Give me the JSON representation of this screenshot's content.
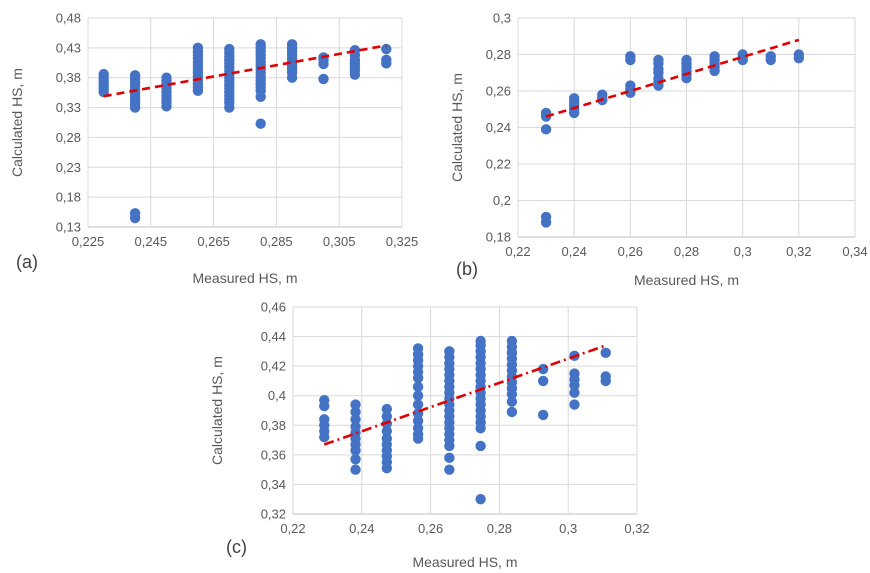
{
  "chart_data": [
    {
      "id": "a",
      "type": "scatter",
      "panel_label": "(a)",
      "xlabel": "Measured HS, m",
      "ylabel": "Calculated HS, m",
      "xlim": [
        0.225,
        0.325
      ],
      "ylim": [
        0.13,
        0.48
      ],
      "xticks": [
        "0,225",
        "0,245",
        "0,265",
        "0,285",
        "0,305",
        "0,325"
      ],
      "yticks": [
        "0,13",
        "0,18",
        "0,23",
        "0,28",
        "0,33",
        "0,38",
        "0,43",
        "0,48"
      ],
      "grid": true,
      "trendline": {
        "x": [
          0.23,
          0.32
        ],
        "y": [
          0.349,
          0.434
        ],
        "style": "dashed"
      },
      "points": [
        [
          0.23,
          0.386
        ],
        [
          0.23,
          0.381
        ],
        [
          0.23,
          0.376
        ],
        [
          0.23,
          0.371
        ],
        [
          0.23,
          0.366
        ],
        [
          0.23,
          0.361
        ],
        [
          0.23,
          0.356
        ],
        [
          0.24,
          0.384
        ],
        [
          0.24,
          0.378
        ],
        [
          0.24,
          0.372
        ],
        [
          0.24,
          0.366
        ],
        [
          0.24,
          0.36
        ],
        [
          0.24,
          0.354
        ],
        [
          0.24,
          0.348
        ],
        [
          0.24,
          0.342
        ],
        [
          0.24,
          0.336
        ],
        [
          0.24,
          0.33
        ],
        [
          0.24,
          0.153
        ],
        [
          0.24,
          0.145
        ],
        [
          0.25,
          0.38
        ],
        [
          0.25,
          0.374
        ],
        [
          0.25,
          0.368
        ],
        [
          0.25,
          0.362
        ],
        [
          0.25,
          0.356
        ],
        [
          0.25,
          0.35
        ],
        [
          0.25,
          0.344
        ],
        [
          0.25,
          0.338
        ],
        [
          0.25,
          0.332
        ],
        [
          0.26,
          0.43
        ],
        [
          0.26,
          0.424
        ],
        [
          0.26,
          0.418
        ],
        [
          0.26,
          0.412
        ],
        [
          0.26,
          0.406
        ],
        [
          0.26,
          0.4
        ],
        [
          0.26,
          0.394
        ],
        [
          0.26,
          0.388
        ],
        [
          0.26,
          0.382
        ],
        [
          0.26,
          0.376
        ],
        [
          0.26,
          0.37
        ],
        [
          0.26,
          0.364
        ],
        [
          0.26,
          0.358
        ],
        [
          0.27,
          0.428
        ],
        [
          0.27,
          0.422
        ],
        [
          0.27,
          0.416
        ],
        [
          0.27,
          0.41
        ],
        [
          0.27,
          0.404
        ],
        [
          0.27,
          0.398
        ],
        [
          0.27,
          0.392
        ],
        [
          0.27,
          0.386
        ],
        [
          0.27,
          0.38
        ],
        [
          0.27,
          0.374
        ],
        [
          0.27,
          0.368
        ],
        [
          0.27,
          0.362
        ],
        [
          0.27,
          0.356
        ],
        [
          0.27,
          0.35
        ],
        [
          0.27,
          0.344
        ],
        [
          0.27,
          0.338
        ],
        [
          0.27,
          0.33
        ],
        [
          0.28,
          0.436
        ],
        [
          0.28,
          0.43
        ],
        [
          0.28,
          0.424
        ],
        [
          0.28,
          0.418
        ],
        [
          0.28,
          0.412
        ],
        [
          0.28,
          0.406
        ],
        [
          0.28,
          0.4
        ],
        [
          0.28,
          0.394
        ],
        [
          0.28,
          0.388
        ],
        [
          0.28,
          0.382
        ],
        [
          0.28,
          0.376
        ],
        [
          0.28,
          0.37
        ],
        [
          0.28,
          0.364
        ],
        [
          0.28,
          0.358
        ],
        [
          0.28,
          0.348
        ],
        [
          0.28,
          0.303
        ],
        [
          0.29,
          0.436
        ],
        [
          0.29,
          0.43
        ],
        [
          0.29,
          0.424
        ],
        [
          0.29,
          0.418
        ],
        [
          0.29,
          0.412
        ],
        [
          0.29,
          0.406
        ],
        [
          0.29,
          0.4
        ],
        [
          0.29,
          0.394
        ],
        [
          0.29,
          0.388
        ],
        [
          0.29,
          0.38
        ],
        [
          0.3,
          0.414
        ],
        [
          0.3,
          0.41
        ],
        [
          0.3,
          0.403
        ],
        [
          0.3,
          0.378
        ],
        [
          0.31,
          0.426
        ],
        [
          0.31,
          0.418
        ],
        [
          0.31,
          0.41
        ],
        [
          0.31,
          0.404
        ],
        [
          0.31,
          0.398
        ],
        [
          0.31,
          0.392
        ],
        [
          0.31,
          0.385
        ],
        [
          0.32,
          0.428
        ],
        [
          0.32,
          0.41
        ],
        [
          0.32,
          0.404
        ]
      ]
    },
    {
      "id": "b",
      "type": "scatter",
      "panel_label": "(b)",
      "xlabel": "Measured HS, m",
      "ylabel": "Calculated HS, m",
      "xlim": [
        0.22,
        0.34
      ],
      "ylim": [
        0.18,
        0.3
      ],
      "xticks": [
        "0,22",
        "0,24",
        "0,26",
        "0,28",
        "0,3",
        "0,32",
        "0,34"
      ],
      "yticks": [
        "0,18",
        "0,2",
        "0,22",
        "0,24",
        "0,26",
        "0,28",
        "0,3"
      ],
      "grid": true,
      "trendline": {
        "x": [
          0.23,
          0.32
        ],
        "y": [
          0.246,
          0.288
        ],
        "style": "dashed"
      },
      "points": [
        [
          0.23,
          0.248
        ],
        [
          0.23,
          0.246
        ],
        [
          0.23,
          0.239
        ],
        [
          0.23,
          0.191
        ],
        [
          0.23,
          0.188
        ],
        [
          0.24,
          0.256
        ],
        [
          0.24,
          0.254
        ],
        [
          0.24,
          0.252
        ],
        [
          0.24,
          0.25
        ],
        [
          0.24,
          0.248
        ],
        [
          0.25,
          0.258
        ],
        [
          0.25,
          0.256
        ],
        [
          0.25,
          0.255
        ],
        [
          0.26,
          0.279
        ],
        [
          0.26,
          0.277
        ],
        [
          0.26,
          0.263
        ],
        [
          0.26,
          0.261
        ],
        [
          0.26,
          0.259
        ],
        [
          0.27,
          0.277
        ],
        [
          0.27,
          0.275
        ],
        [
          0.27,
          0.272
        ],
        [
          0.27,
          0.27
        ],
        [
          0.27,
          0.267
        ],
        [
          0.27,
          0.265
        ],
        [
          0.27,
          0.263
        ],
        [
          0.28,
          0.277
        ],
        [
          0.28,
          0.275
        ],
        [
          0.28,
          0.273
        ],
        [
          0.28,
          0.271
        ],
        [
          0.28,
          0.269
        ],
        [
          0.28,
          0.267
        ],
        [
          0.29,
          0.279
        ],
        [
          0.29,
          0.277
        ],
        [
          0.29,
          0.275
        ],
        [
          0.29,
          0.273
        ],
        [
          0.29,
          0.271
        ],
        [
          0.3,
          0.28
        ],
        [
          0.3,
          0.278
        ],
        [
          0.3,
          0.277
        ],
        [
          0.31,
          0.279
        ],
        [
          0.31,
          0.277
        ],
        [
          0.32,
          0.28
        ],
        [
          0.32,
          0.278
        ]
      ]
    },
    {
      "id": "c",
      "type": "scatter",
      "panel_label": "(c)",
      "xlabel": "Measured HS, m",
      "ylabel": "Calculated HS, m",
      "xlim": [
        0.22,
        0.33
      ],
      "ylim": [
        0.32,
        0.46
      ],
      "xticks": [
        "0,22",
        "0,24",
        "0,26",
        "0,28",
        "0,3",
        "0,32"
      ],
      "yticks": [
        "0,32",
        "0,34",
        "0,36",
        "0,38",
        "0,4",
        "0,42",
        "0,44",
        "0,46"
      ],
      "grid": true,
      "trendline": {
        "x": [
          0.23,
          0.32
        ],
        "y": [
          0.367,
          0.434
        ],
        "style": "dash-dot"
      },
      "points": [
        [
          0.23,
          0.397
        ],
        [
          0.23,
          0.393
        ],
        [
          0.23,
          0.384
        ],
        [
          0.23,
          0.38
        ],
        [
          0.23,
          0.376
        ],
        [
          0.23,
          0.372
        ],
        [
          0.24,
          0.394
        ],
        [
          0.24,
          0.389
        ],
        [
          0.24,
          0.384
        ],
        [
          0.24,
          0.379
        ],
        [
          0.24,
          0.375
        ],
        [
          0.24,
          0.371
        ],
        [
          0.24,
          0.367
        ],
        [
          0.24,
          0.363
        ],
        [
          0.24,
          0.357
        ],
        [
          0.24,
          0.35
        ],
        [
          0.25,
          0.391
        ],
        [
          0.25,
          0.386
        ],
        [
          0.25,
          0.381
        ],
        [
          0.25,
          0.376
        ],
        [
          0.25,
          0.371
        ],
        [
          0.25,
          0.367
        ],
        [
          0.25,
          0.363
        ],
        [
          0.25,
          0.359
        ],
        [
          0.25,
          0.355
        ],
        [
          0.25,
          0.351
        ],
        [
          0.26,
          0.432
        ],
        [
          0.26,
          0.428
        ],
        [
          0.26,
          0.424
        ],
        [
          0.26,
          0.42
        ],
        [
          0.26,
          0.416
        ],
        [
          0.26,
          0.412
        ],
        [
          0.26,
          0.406
        ],
        [
          0.26,
          0.4
        ],
        [
          0.26,
          0.394
        ],
        [
          0.26,
          0.388
        ],
        [
          0.26,
          0.383
        ],
        [
          0.26,
          0.378
        ],
        [
          0.26,
          0.374
        ],
        [
          0.26,
          0.371
        ],
        [
          0.27,
          0.43
        ],
        [
          0.27,
          0.426
        ],
        [
          0.27,
          0.422
        ],
        [
          0.27,
          0.418
        ],
        [
          0.27,
          0.414
        ],
        [
          0.27,
          0.41
        ],
        [
          0.27,
          0.406
        ],
        [
          0.27,
          0.402
        ],
        [
          0.27,
          0.398
        ],
        [
          0.27,
          0.394
        ],
        [
          0.27,
          0.39
        ],
        [
          0.27,
          0.386
        ],
        [
          0.27,
          0.382
        ],
        [
          0.27,
          0.378
        ],
        [
          0.27,
          0.374
        ],
        [
          0.27,
          0.37
        ],
        [
          0.27,
          0.366
        ],
        [
          0.27,
          0.358
        ],
        [
          0.27,
          0.35
        ],
        [
          0.28,
          0.437
        ],
        [
          0.28,
          0.434
        ],
        [
          0.28,
          0.43
        ],
        [
          0.28,
          0.426
        ],
        [
          0.28,
          0.422
        ],
        [
          0.28,
          0.418
        ],
        [
          0.28,
          0.414
        ],
        [
          0.28,
          0.41
        ],
        [
          0.28,
          0.406
        ],
        [
          0.28,
          0.402
        ],
        [
          0.28,
          0.398
        ],
        [
          0.28,
          0.394
        ],
        [
          0.28,
          0.39
        ],
        [
          0.28,
          0.386
        ],
        [
          0.28,
          0.382
        ],
        [
          0.28,
          0.378
        ],
        [
          0.28,
          0.366
        ],
        [
          0.28,
          0.33
        ],
        [
          0.29,
          0.437
        ],
        [
          0.29,
          0.433
        ],
        [
          0.29,
          0.429
        ],
        [
          0.29,
          0.425
        ],
        [
          0.29,
          0.421
        ],
        [
          0.29,
          0.417
        ],
        [
          0.29,
          0.413
        ],
        [
          0.29,
          0.409
        ],
        [
          0.29,
          0.405
        ],
        [
          0.29,
          0.401
        ],
        [
          0.29,
          0.396
        ],
        [
          0.29,
          0.389
        ],
        [
          0.3,
          0.418
        ],
        [
          0.3,
          0.41
        ],
        [
          0.3,
          0.387
        ],
        [
          0.31,
          0.427
        ],
        [
          0.31,
          0.415
        ],
        [
          0.31,
          0.411
        ],
        [
          0.31,
          0.407
        ],
        [
          0.31,
          0.402
        ],
        [
          0.31,
          0.394
        ],
        [
          0.32,
          0.429
        ],
        [
          0.32,
          0.413
        ],
        [
          0.32,
          0.41
        ]
      ]
    }
  ]
}
